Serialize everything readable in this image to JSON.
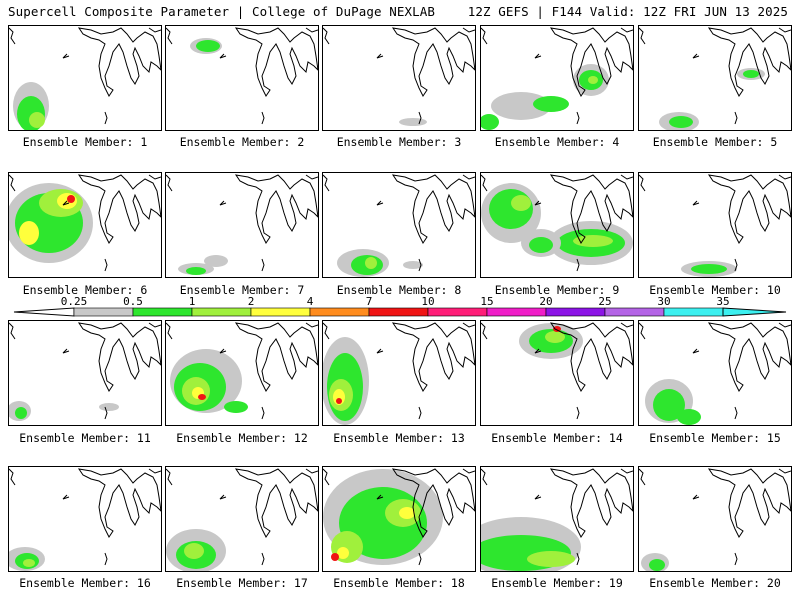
{
  "header": {
    "left_title": "Supercell Composite Parameter | College of DuPage NEXLAB",
    "right_title": "12Z GEFS | F144 Valid: 12Z FRI JUN 13 2025"
  },
  "label_prefix": "Ensemble Member: ",
  "members": [
    "1",
    "2",
    "3",
    "4",
    "5",
    "6",
    "7",
    "8",
    "9",
    "10",
    "11",
    "12",
    "13",
    "14",
    "15",
    "16",
    "17",
    "18",
    "19",
    "20"
  ],
  "colorbar": {
    "levels": [
      "0.25",
      "0.5",
      "1",
      "2",
      "4",
      "7",
      "10",
      "15",
      "20",
      "25",
      "30",
      "35"
    ],
    "colors": [
      "#c8c8c8",
      "#2ee62e",
      "#a0f03c",
      "#ffff3c",
      "#ff8c1e",
      "#f01414",
      "#ff1e78",
      "#f01ec8",
      "#8c14e6",
      "#b464e6",
      "#3cf0f0"
    ]
  }
}
